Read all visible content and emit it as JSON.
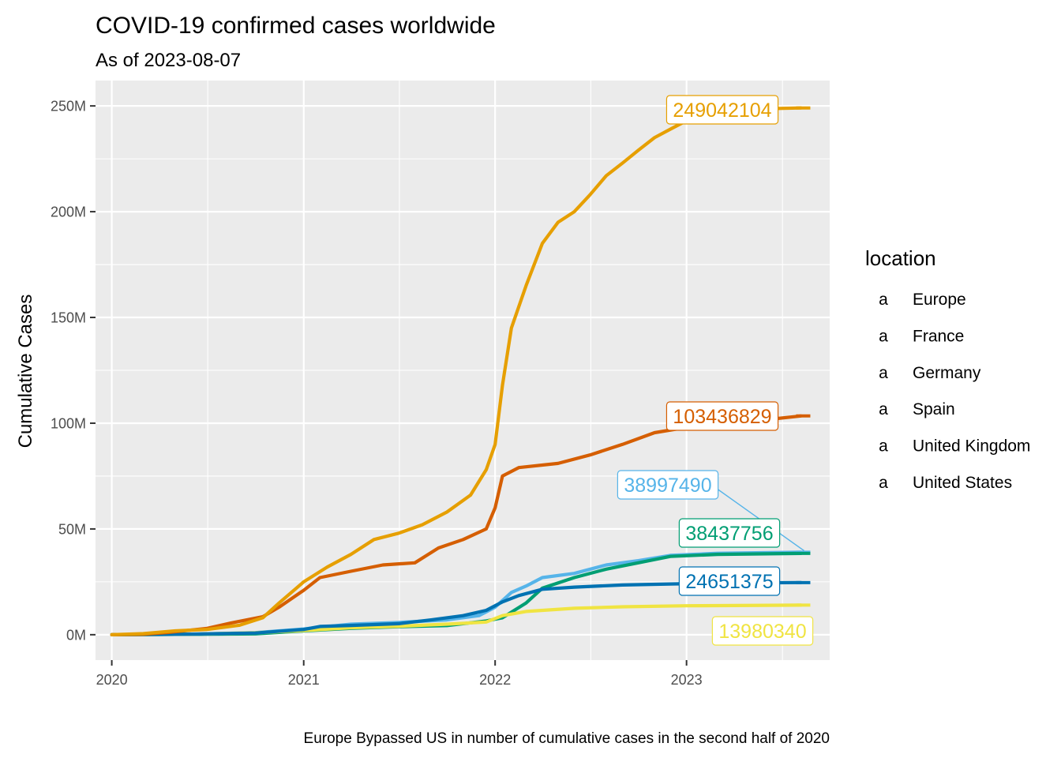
{
  "chart_data": {
    "type": "line",
    "title": "COVID-19 confirmed cases worldwide",
    "subtitle": "As of 2023-08-07",
    "xlabel": "",
    "ylabel": "Cumulative Cases",
    "caption": "Europe Bypassed US in number of cumulative cases in the second half of 2020",
    "x_ticks": [
      "2020",
      "2021",
      "2022",
      "2023"
    ],
    "y_ticks": [
      "0M",
      "50M",
      "100M",
      "150M",
      "200M",
      "250M"
    ],
    "xlim": [
      "2019-12-01",
      "2023-10-01"
    ],
    "ylim": [
      -12,
      262
    ],
    "y_unit": "millions",
    "grid": true,
    "legend": {
      "title": "location",
      "position": "right"
    },
    "series": [
      {
        "name": "Europe",
        "color": "#E69F00",
        "end_label": "249042104",
        "points": [
          [
            "2020-01-01",
            0
          ],
          [
            "2020-03-01",
            0.5
          ],
          [
            "2020-05-01",
            1.8
          ],
          [
            "2020-07-01",
            2.5
          ],
          [
            "2020-09-01",
            4.5
          ],
          [
            "2020-10-15",
            8
          ],
          [
            "2020-11-15",
            15
          ],
          [
            "2021-01-01",
            25
          ],
          [
            "2021-02-15",
            32
          ],
          [
            "2021-04-01",
            38
          ],
          [
            "2021-05-15",
            45
          ],
          [
            "2021-07-01",
            48
          ],
          [
            "2021-08-15",
            52
          ],
          [
            "2021-10-01",
            58
          ],
          [
            "2021-11-15",
            66
          ],
          [
            "2021-12-15",
            78
          ],
          [
            "2022-01-01",
            90
          ],
          [
            "2022-01-15",
            118
          ],
          [
            "2022-02-01",
            145
          ],
          [
            "2022-03-01",
            165
          ],
          [
            "2022-04-01",
            185
          ],
          [
            "2022-05-01",
            195
          ],
          [
            "2022-06-01",
            200
          ],
          [
            "2022-07-01",
            208
          ],
          [
            "2022-08-01",
            217
          ],
          [
            "2022-09-01",
            223
          ],
          [
            "2022-10-01",
            229
          ],
          [
            "2022-11-01",
            235
          ],
          [
            "2022-12-01",
            239
          ],
          [
            "2023-01-01",
            243
          ],
          [
            "2023-03-01",
            247
          ],
          [
            "2023-05-01",
            248.5
          ],
          [
            "2023-08-07",
            249.04
          ]
        ]
      },
      {
        "name": "France",
        "color": "#56B4E9",
        "end_label": "38997490",
        "points": [
          [
            "2020-01-01",
            0
          ],
          [
            "2020-06-01",
            0.2
          ],
          [
            "2020-10-01",
            1
          ],
          [
            "2021-01-01",
            2.7
          ],
          [
            "2021-04-01",
            5
          ],
          [
            "2021-07-01",
            5.8
          ],
          [
            "2021-10-01",
            7
          ],
          [
            "2021-12-01",
            9
          ],
          [
            "2022-01-01",
            13
          ],
          [
            "2022-02-01",
            20
          ],
          [
            "2022-03-01",
            23
          ],
          [
            "2022-04-01",
            27
          ],
          [
            "2022-06-01",
            29
          ],
          [
            "2022-08-01",
            33
          ],
          [
            "2022-10-01",
            35
          ],
          [
            "2022-12-01",
            37.5
          ],
          [
            "2023-03-01",
            38.5
          ],
          [
            "2023-08-07",
            39.0
          ]
        ]
      },
      {
        "name": "Germany",
        "color": "#009E73",
        "end_label": "38437756",
        "points": [
          [
            "2020-01-01",
            0
          ],
          [
            "2020-06-01",
            0.2
          ],
          [
            "2020-10-01",
            0.4
          ],
          [
            "2021-01-01",
            1.8
          ],
          [
            "2021-04-01",
            3
          ],
          [
            "2021-07-01",
            3.8
          ],
          [
            "2021-10-01",
            4.3
          ],
          [
            "2021-12-15",
            6.5
          ],
          [
            "2022-01-15",
            8
          ],
          [
            "2022-03-01",
            15
          ],
          [
            "2022-04-01",
            22
          ],
          [
            "2022-06-01",
            27
          ],
          [
            "2022-08-01",
            31
          ],
          [
            "2022-10-01",
            34
          ],
          [
            "2022-12-01",
            37
          ],
          [
            "2023-03-01",
            38
          ],
          [
            "2023-08-07",
            38.44
          ]
        ]
      },
      {
        "name": "Spain",
        "color": "#F0E442",
        "end_label": "13980340",
        "points": [
          [
            "2020-01-01",
            0
          ],
          [
            "2020-06-01",
            0.25
          ],
          [
            "2020-10-01",
            0.9
          ],
          [
            "2021-01-01",
            2
          ],
          [
            "2021-04-01",
            3.3
          ],
          [
            "2021-07-01",
            4
          ],
          [
            "2021-10-01",
            5
          ],
          [
            "2021-12-15",
            6
          ],
          [
            "2022-01-15",
            9
          ],
          [
            "2022-03-01",
            11
          ],
          [
            "2022-06-01",
            12.5
          ],
          [
            "2022-09-01",
            13.2
          ],
          [
            "2023-01-01",
            13.7
          ],
          [
            "2023-08-07",
            13.98
          ]
        ]
      },
      {
        "name": "United Kingdom",
        "color": "#0072B2",
        "end_label": "24651375",
        "points": [
          [
            "2020-01-01",
            0
          ],
          [
            "2020-06-01",
            0.3
          ],
          [
            "2020-10-01",
            0.8
          ],
          [
            "2021-01-01",
            2.5
          ],
          [
            "2021-02-01",
            3.9
          ],
          [
            "2021-04-01",
            4.4
          ],
          [
            "2021-07-01",
            5.2
          ],
          [
            "2021-09-01",
            7
          ],
          [
            "2021-11-01",
            9
          ],
          [
            "2021-12-15",
            11.5
          ],
          [
            "2022-01-15",
            15.5
          ],
          [
            "2022-02-15",
            18.5
          ],
          [
            "2022-04-01",
            21.5
          ],
          [
            "2022-06-01",
            22.5
          ],
          [
            "2022-09-01",
            23.5
          ],
          [
            "2022-12-01",
            24
          ],
          [
            "2023-03-01",
            24.4
          ],
          [
            "2023-08-07",
            24.65
          ]
        ]
      },
      {
        "name": "United States",
        "color": "#D55E00",
        "end_label": "103436829",
        "points": [
          [
            "2020-01-01",
            0
          ],
          [
            "2020-03-01",
            0.2
          ],
          [
            "2020-04-15",
            1
          ],
          [
            "2020-07-01",
            3
          ],
          [
            "2020-08-15",
            5.5
          ],
          [
            "2020-10-15",
            8.5
          ],
          [
            "2020-11-15",
            13
          ],
          [
            "2021-01-01",
            21
          ],
          [
            "2021-02-01",
            27
          ],
          [
            "2021-04-01",
            30
          ],
          [
            "2021-06-01",
            33
          ],
          [
            "2021-08-01",
            34
          ],
          [
            "2021-09-15",
            41
          ],
          [
            "2021-11-01",
            45
          ],
          [
            "2021-12-15",
            50
          ],
          [
            "2022-01-01",
            60
          ],
          [
            "2022-01-15",
            75
          ],
          [
            "2022-02-15",
            79
          ],
          [
            "2022-05-01",
            81
          ],
          [
            "2022-07-01",
            85
          ],
          [
            "2022-09-01",
            90
          ],
          [
            "2022-11-01",
            95.5
          ],
          [
            "2023-01-01",
            98
          ],
          [
            "2023-04-01",
            100
          ],
          [
            "2023-08-07",
            103.44
          ]
        ]
      }
    ]
  }
}
